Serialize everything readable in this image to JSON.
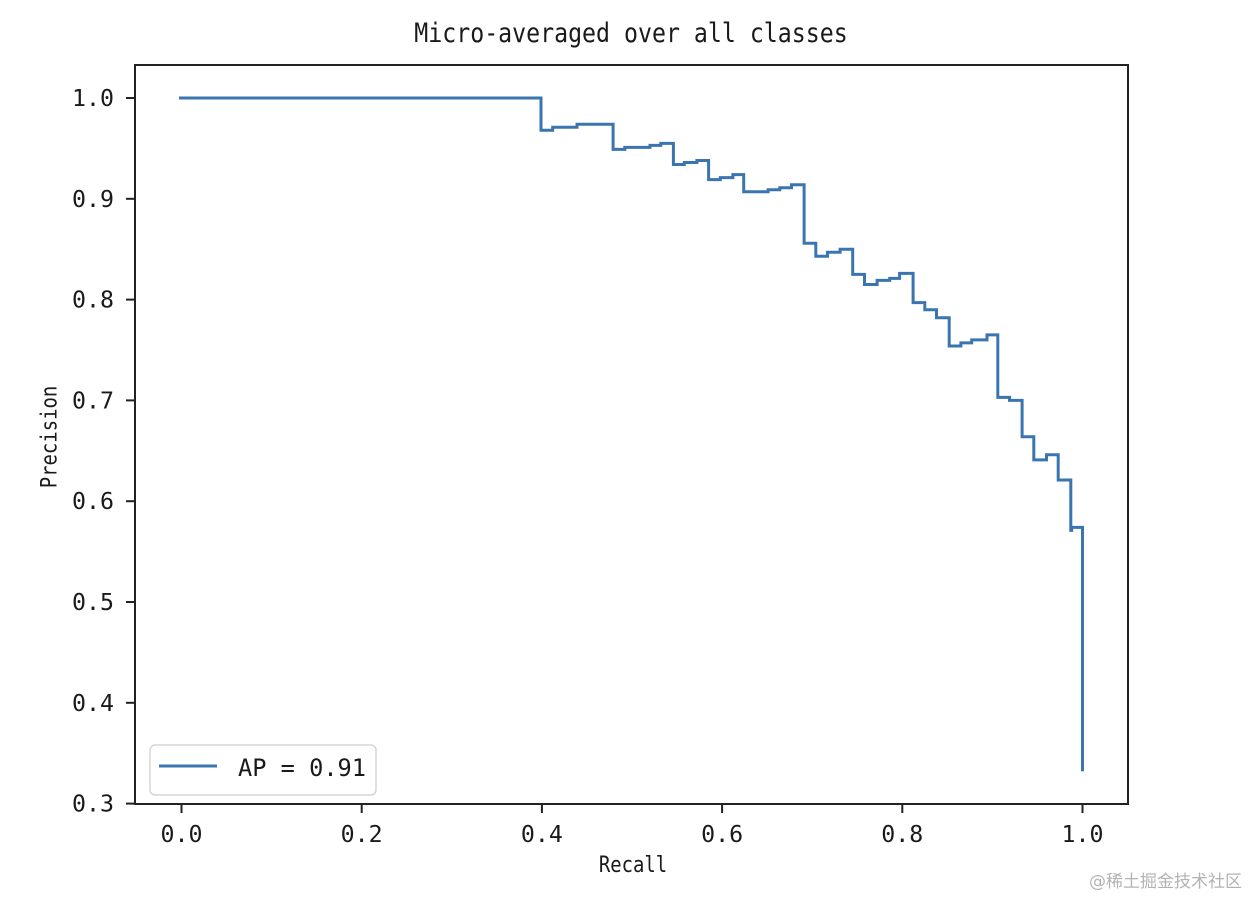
{
  "chart_data": {
    "type": "line",
    "drawstyle": "steps-post",
    "title": "Micro-averaged over all classes",
    "xlabel": "Recall",
    "ylabel": "Precision",
    "xlim": [
      -0.05,
      1.05
    ],
    "ylim": [
      0.3,
      1.03
    ],
    "xticks": [
      "0.0",
      "0.2",
      "0.4",
      "0.6",
      "0.8",
      "1.0"
    ],
    "yticks": [
      "0.3",
      "0.4",
      "0.5",
      "0.6",
      "0.7",
      "0.8",
      "0.9",
      "1.0"
    ],
    "grid": false,
    "legend": {
      "position": "lower left",
      "entries": [
        "AP = 0.91"
      ]
    },
    "series": [
      {
        "name": "AP = 0.91",
        "color": "#3a75b0",
        "points": [
          [
            0.0,
            1.0
          ],
          [
            0.399,
            0.968
          ],
          [
            0.412,
            0.971
          ],
          [
            0.439,
            0.974
          ],
          [
            0.479,
            0.949
          ],
          [
            0.492,
            0.951
          ],
          [
            0.52,
            0.953
          ],
          [
            0.532,
            0.955
          ],
          [
            0.546,
            0.934
          ],
          [
            0.558,
            0.936
          ],
          [
            0.572,
            0.938
          ],
          [
            0.585,
            0.919
          ],
          [
            0.598,
            0.921
          ],
          [
            0.612,
            0.924
          ],
          [
            0.624,
            0.907
          ],
          [
            0.651,
            0.909
          ],
          [
            0.664,
            0.911
          ],
          [
            0.677,
            0.914
          ],
          [
            0.691,
            0.856
          ],
          [
            0.704,
            0.843
          ],
          [
            0.717,
            0.847
          ],
          [
            0.731,
            0.85
          ],
          [
            0.745,
            0.825
          ],
          [
            0.758,
            0.815
          ],
          [
            0.772,
            0.819
          ],
          [
            0.786,
            0.821
          ],
          [
            0.797,
            0.826
          ],
          [
            0.812,
            0.797
          ],
          [
            0.825,
            0.79
          ],
          [
            0.838,
            0.782
          ],
          [
            0.852,
            0.754
          ],
          [
            0.865,
            0.757
          ],
          [
            0.877,
            0.76
          ],
          [
            0.894,
            0.765
          ],
          [
            0.906,
            0.703
          ],
          [
            0.919,
            0.7
          ],
          [
            0.933,
            0.664
          ],
          [
            0.946,
            0.641
          ],
          [
            0.96,
            0.646
          ],
          [
            0.973,
            0.621
          ],
          [
            0.987,
            0.571
          ],
          [
            0.988,
            0.574
          ],
          [
            1.0,
            0.332
          ]
        ]
      }
    ]
  },
  "watermark": "@稀土掘金技术社区"
}
